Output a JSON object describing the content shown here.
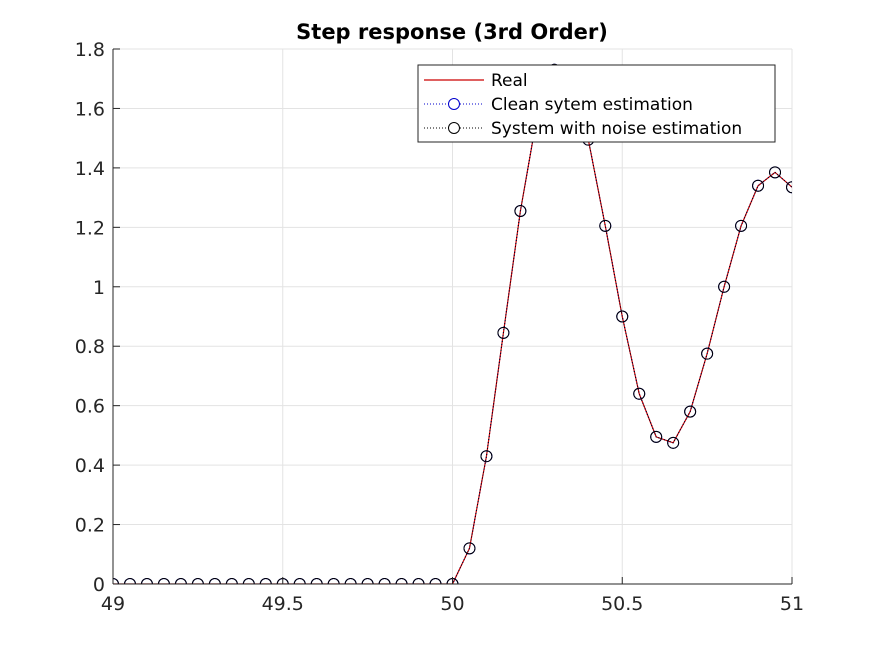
{
  "chart_data": {
    "type": "line",
    "title": "Step response (3rd Order)",
    "xlabel": "",
    "ylabel": "",
    "xlim": [
      49,
      51
    ],
    "ylim": [
      0,
      1.8
    ],
    "xticks": [
      49,
      49.5,
      50,
      50.5,
      51
    ],
    "xtick_labels": [
      "49",
      "49.5",
      "50",
      "50.5",
      "51"
    ],
    "yticks": [
      0,
      0.2,
      0.4,
      0.6,
      0.8,
      1,
      1.2,
      1.4,
      1.6,
      1.8
    ],
    "ytick_labels": [
      "0",
      "0.2",
      "0.4",
      "0.6",
      "0.8",
      "1",
      "1.2",
      "1.4",
      "1.6",
      "1.8"
    ],
    "grid": true,
    "legend_position": "top-right",
    "x": [
      49.0,
      49.05,
      49.1,
      49.15,
      49.2,
      49.25,
      49.3,
      49.35,
      49.4,
      49.45,
      49.5,
      49.55,
      49.6,
      49.65,
      49.7,
      49.75,
      49.8,
      49.85,
      49.9,
      49.95,
      50.0,
      50.05,
      50.1,
      50.15,
      50.2,
      50.25,
      50.3,
      50.35,
      50.4,
      50.45,
      50.5,
      50.55,
      50.6,
      50.65,
      50.7,
      50.75,
      50.8,
      50.85,
      50.9,
      50.95,
      51.0
    ],
    "series": [
      {
        "name": "Real",
        "style": "line",
        "color": "#cc0000",
        "values": [
          0,
          0,
          0,
          0,
          0,
          0,
          0,
          0,
          0,
          0,
          0,
          0,
          0,
          0,
          0,
          0,
          0,
          0,
          0,
          0,
          0,
          0.12,
          0.43,
          0.845,
          1.255,
          1.58,
          1.73,
          1.68,
          1.495,
          1.205,
          0.9,
          0.64,
          0.495,
          0.475,
          0.58,
          0.775,
          1.0,
          1.205,
          1.34,
          1.385,
          1.335
        ]
      },
      {
        "name": "Clean sytem estimation",
        "style": "dotted-circle",
        "color": "#0000cc",
        "values": [
          0,
          0,
          0,
          0,
          0,
          0,
          0,
          0,
          0,
          0,
          0,
          0,
          0,
          0,
          0,
          0,
          0,
          0,
          0,
          0,
          0,
          0.12,
          0.43,
          0.845,
          1.255,
          1.58,
          1.73,
          1.68,
          1.495,
          1.205,
          0.9,
          0.64,
          0.495,
          0.475,
          0.58,
          0.775,
          1.0,
          1.205,
          1.34,
          1.385,
          1.335
        ]
      },
      {
        "name": "System with noise estimation",
        "style": "dotted-circle",
        "color": "#000000",
        "values": [
          0,
          0,
          0,
          0,
          0,
          0,
          0,
          0,
          0,
          0,
          0,
          0,
          0,
          0,
          0,
          0,
          0,
          0,
          0,
          0,
          0,
          0.12,
          0.43,
          0.845,
          1.255,
          1.58,
          1.73,
          1.68,
          1.495,
          1.205,
          0.9,
          0.64,
          0.495,
          0.475,
          0.58,
          0.775,
          1.0,
          1.205,
          1.34,
          1.385,
          1.335
        ]
      }
    ]
  }
}
